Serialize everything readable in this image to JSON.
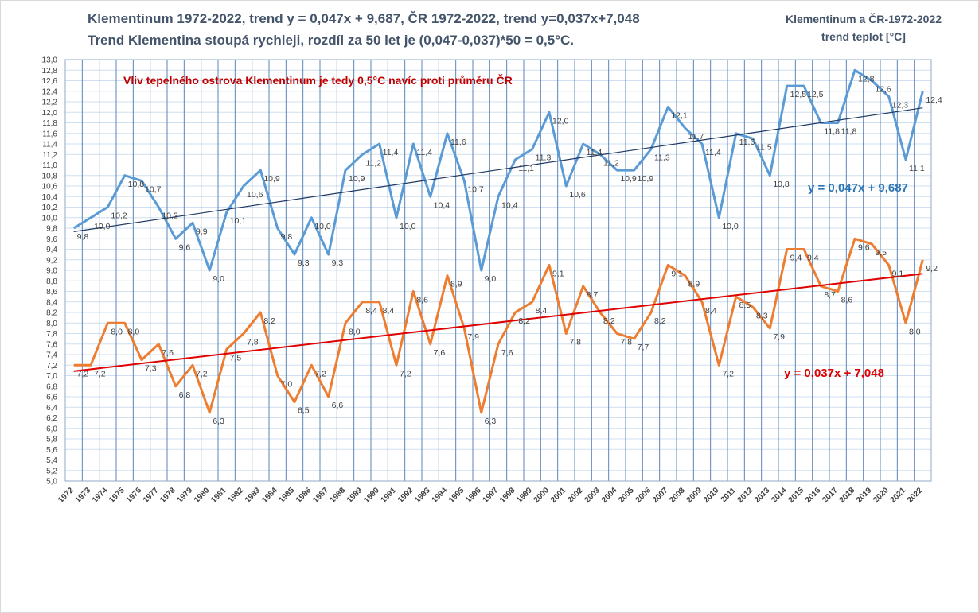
{
  "header": {
    "title_line1": "Klementinum 1972-2022, trend  y = 0,047x + 9,687, ČR 1972-2022,  trend y=0,037x+7,048",
    "title_line2": "Trend Klementina stoupá  rychleji, rozdíl za 50 let je (0,047-0,037)*50 = 0,5°C.",
    "corner_line1": "Klementinum a ČR-1972-2022",
    "corner_line2": "trend teplot [°C]"
  },
  "chart_data": {
    "type": "line",
    "x": [
      "1972",
      "1973",
      "1974",
      "1975",
      "1976",
      "1977",
      "1978",
      "1979",
      "1980",
      "1981",
      "1982",
      "1983",
      "1984",
      "1985",
      "1986",
      "1987",
      "1988",
      "1989",
      "1990",
      "1991",
      "1992",
      "1993",
      "1994",
      "1995",
      "1996",
      "1997",
      "1998",
      "1999",
      "2000",
      "2001",
      "2002",
      "2003",
      "2004",
      "2005",
      "2006",
      "2007",
      "2008",
      "2009",
      "2010",
      "2011",
      "2012",
      "2013",
      "2014",
      "2015",
      "2016",
      "2017",
      "2018",
      "2019",
      "2020",
      "2021",
      "2022"
    ],
    "ylim": [
      5.0,
      13.0
    ],
    "ytick_step": 0.2,
    "grid": "vertical lines per year, horizontal lines per tick",
    "series": [
      {
        "color": "#5b9bd5",
        "values": [
          9.8,
          10.0,
          10.2,
          10.8,
          10.7,
          10.2,
          9.6,
          9.9,
          9.0,
          10.1,
          10.6,
          10.9,
          9.8,
          9.3,
          10.0,
          9.3,
          10.9,
          11.2,
          11.4,
          10.0,
          11.4,
          10.4,
          11.6,
          10.7,
          9.0,
          10.4,
          11.1,
          11.3,
          12.0,
          10.6,
          11.4,
          11.2,
          10.9,
          10.9,
          11.3,
          12.1,
          11.7,
          11.4,
          10.0,
          11.6,
          11.5,
          10.8,
          12.5,
          12.5,
          11.8,
          11.8,
          12.8,
          12.6,
          12.3,
          11.1,
          12.4
        ],
        "labels": [
          "9,8",
          "10,0",
          "10,2",
          "10,8",
          "10,7",
          "10,2",
          "9,6",
          "9,9",
          "9,0",
          "10,1",
          "10,6",
          "10,9",
          "9,8",
          "9,3",
          "10,0",
          "9,3",
          "10,9",
          "11,2",
          "11,4",
          "10,0",
          "11,4",
          "10,4",
          "11,6",
          "10,7",
          "9,0",
          "10,4",
          "11,1",
          "11,3",
          "12,0",
          "10,6",
          "11,4",
          "11,2",
          "10,9",
          "10,9",
          "11,3",
          "12,1",
          "11,7",
          "11,4",
          "10,0",
          "11,6",
          "11,5",
          "10,8",
          "12,5",
          "12,5",
          "11,8",
          "11,8",
          "12,8",
          "12,6",
          "12,3",
          "11,1",
          "12,4"
        ],
        "trend": {
          "slope": 0.047,
          "intercept": 9.687,
          "color": "#1f3864",
          "label": "y = 0,047x + 9,687",
          "label_color": "#2e75b6"
        }
      },
      {
        "color": "#ed7d31",
        "values": [
          7.2,
          7.2,
          8.0,
          8.0,
          7.3,
          7.6,
          6.8,
          7.2,
          6.3,
          7.5,
          7.8,
          8.2,
          7.0,
          6.5,
          7.2,
          6.6,
          8.0,
          8.4,
          8.4,
          7.2,
          8.6,
          7.6,
          8.9,
          7.9,
          6.3,
          7.6,
          8.2,
          8.4,
          9.1,
          7.8,
          8.7,
          8.2,
          7.8,
          7.7,
          8.2,
          9.1,
          8.9,
          8.4,
          7.2,
          8.5,
          8.3,
          7.9,
          9.4,
          9.4,
          8.7,
          8.6,
          9.6,
          9.5,
          9.1,
          8.0,
          9.2
        ],
        "labels": [
          "7,2",
          "7,2",
          "8,0",
          "8,0",
          "7,3",
          "7,6",
          "6,8",
          "7,2",
          "6,3",
          "7,5",
          "7,8",
          "8,2",
          "7,0",
          "6,5",
          "7,2",
          "6,6",
          "8,0",
          "8,4",
          "8,4",
          "7,2",
          "8,6",
          "7,6",
          "8,9",
          "7,9",
          "6,3",
          "7,6",
          "8,2",
          "8,4",
          "9,1",
          "7,8",
          "8,7",
          "8,2",
          "7,8",
          "7,7",
          "8,2",
          "9,1",
          "8,9",
          "8,4",
          "7,2",
          "8,5",
          "8,3",
          "7,9",
          "9,4",
          "9,4",
          "8,7",
          "8,6",
          "9,6",
          "9,5",
          "9,1",
          "8,0",
          "9,2"
        ],
        "trend": {
          "slope": 0.037,
          "intercept": 7.048,
          "color": "#e00000",
          "label": "y = 0,037x + 7,048",
          "label_color": "#e00000"
        }
      }
    ],
    "annotation": {
      "text": "Vliv tepelného ostrova Klementinum je tedy 0,5°C  navíc proti průměru ČR",
      "color": "#c00000"
    }
  }
}
